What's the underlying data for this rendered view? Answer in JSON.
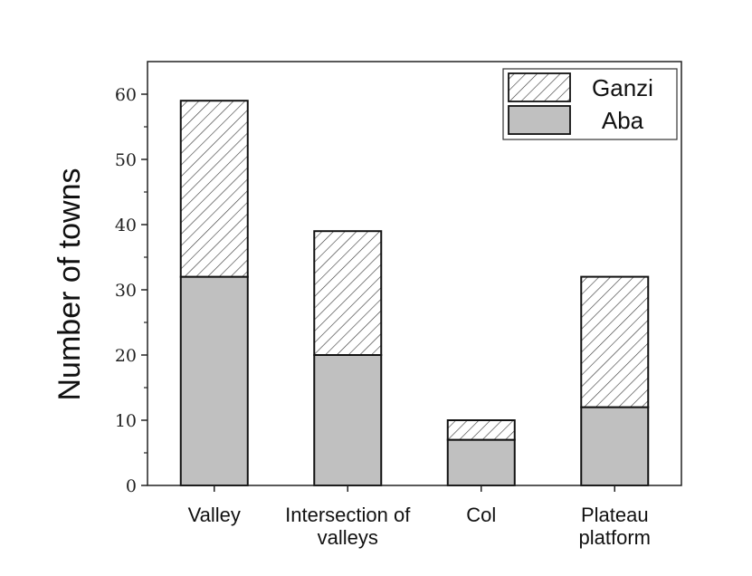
{
  "chart_data": {
    "type": "bar",
    "stacked": true,
    "categories": [
      [
        "Valley"
      ],
      [
        "Intersection of",
        "valleys"
      ],
      [
        "Col"
      ],
      [
        "Plateau",
        "platform"
      ]
    ],
    "series": [
      {
        "name": "Aba",
        "values": [
          32,
          20,
          7,
          12
        ],
        "fill": "#c0c0c0",
        "pattern": "solid"
      },
      {
        "name": "Ganzi",
        "values": [
          27,
          19,
          3,
          20
        ],
        "fill": "#ffffff",
        "pattern": "hatch"
      }
    ],
    "title": "",
    "xlabel": "",
    "ylabel": "Number of towns",
    "ylim": [
      0,
      65
    ],
    "yticks": [
      0,
      10,
      20,
      30,
      40,
      50,
      60
    ],
    "grid": false,
    "legend": {
      "position": "top-right",
      "order": [
        "Ganzi",
        "Aba"
      ]
    }
  }
}
